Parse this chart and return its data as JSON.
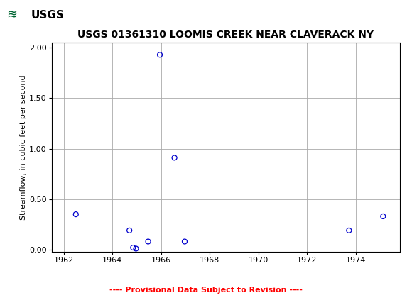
{
  "title": "USGS 01361310 LOOMIS CREEK NEAR CLAVERACK NY",
  "ylabel": "Streamflow, in cubic feet per second",
  "xlim": [
    1961.5,
    1975.8
  ],
  "ylim": [
    -0.02,
    2.05
  ],
  "xticks": [
    1962,
    1964,
    1966,
    1968,
    1970,
    1972,
    1974
  ],
  "yticks": [
    0.0,
    0.5,
    1.0,
    1.5,
    2.0
  ],
  "x_data": [
    1962.5,
    1964.7,
    1964.85,
    1964.97,
    1965.47,
    1965.95,
    1966.55,
    1966.97,
    1973.72,
    1975.12
  ],
  "y_data": [
    0.35,
    0.19,
    0.02,
    0.01,
    0.08,
    1.93,
    0.91,
    0.08,
    0.19,
    0.33
  ],
  "marker_color": "#0000CC",
  "marker_size": 5.0,
  "grid_color": "#aaaaaa",
  "header_bg_color": "#006633",
  "header_text_color": "#ffffff",
  "provisional_text": "---- Provisional Data Subject to Revision ----",
  "provisional_color": "#ff0000",
  "background_color": "#ffffff",
  "title_fontsize": 10,
  "ylabel_fontsize": 8,
  "tick_fontsize": 8,
  "provisional_fontsize": 8
}
